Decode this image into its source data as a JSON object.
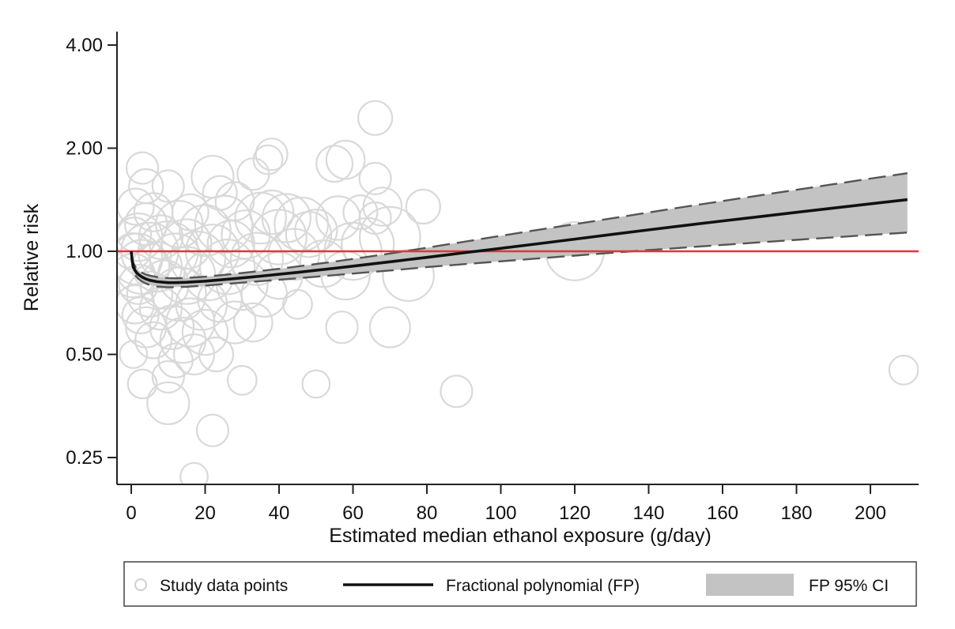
{
  "chart_data": {
    "type": "scatter",
    "title": "",
    "xlabel": "Estimated median ethanol exposure (g/day)",
    "ylabel": "Relative risk",
    "y_scale": "log",
    "xlim": [
      -4,
      214
    ],
    "ylim": [
      0.21,
      4.4
    ],
    "x_ticks": [
      0,
      20,
      40,
      60,
      80,
      100,
      120,
      140,
      160,
      180,
      200
    ],
    "x_tick_labels": [
      "0",
      "20",
      "40",
      "60",
      "80",
      "100",
      "120",
      "140",
      "160",
      "180",
      "200"
    ],
    "y_ticks": [
      0.25,
      0.5,
      1.0,
      2.0,
      4.0
    ],
    "y_tick_labels": [
      "0.25",
      "0.50",
      "1.00",
      "2.00",
      "4.00"
    ],
    "grid": false,
    "reference_line": {
      "y": 1.0,
      "color": "#e8323c"
    },
    "colors": {
      "points": "#d9d9d9",
      "fit": "#111111",
      "ci_fill": "#c3c3c3",
      "ci_line": "#555555"
    },
    "legend": {
      "placement": "bottom",
      "entries": [
        "Study data points",
        "Fractional polynomial (FP)",
        "FP 95% CI"
      ]
    },
    "series": [
      {
        "name": "Study data points",
        "kind": "bubble",
        "points": [
          {
            "x": 0.3,
            "y": 1.0,
            "w": 12
          },
          {
            "x": 0.5,
            "y": 0.85,
            "w": 20
          },
          {
            "x": 0.6,
            "y": 0.5,
            "w": 5
          },
          {
            "x": 0.8,
            "y": 1.12,
            "w": 10
          },
          {
            "x": 1.0,
            "y": 0.7,
            "w": 14
          },
          {
            "x": 1.2,
            "y": 1.35,
            "w": 12
          },
          {
            "x": 1.5,
            "y": 0.95,
            "w": 30
          },
          {
            "x": 2.0,
            "y": 0.8,
            "w": 15
          },
          {
            "x": 2.0,
            "y": 1.1,
            "w": 25
          },
          {
            "x": 2.5,
            "y": 0.65,
            "w": 12
          },
          {
            "x": 3.0,
            "y": 1.75,
            "w": 8
          },
          {
            "x": 3.0,
            "y": 0.41,
            "w": 6
          },
          {
            "x": 3.0,
            "y": 0.9,
            "w": 35
          },
          {
            "x": 4.0,
            "y": 1.55,
            "w": 10
          },
          {
            "x": 4.0,
            "y": 1.2,
            "w": 18
          },
          {
            "x": 4.0,
            "y": 0.6,
            "w": 16
          },
          {
            "x": 5.0,
            "y": 1.0,
            "w": 40
          },
          {
            "x": 5.0,
            "y": 0.75,
            "w": 22
          },
          {
            "x": 6.0,
            "y": 1.3,
            "w": 14
          },
          {
            "x": 6.0,
            "y": 0.55,
            "w": 12
          },
          {
            "x": 7.0,
            "y": 0.9,
            "w": 28
          },
          {
            "x": 8.0,
            "y": 1.1,
            "w": 20
          },
          {
            "x": 8.0,
            "y": 0.68,
            "w": 18
          },
          {
            "x": 9.0,
            "y": 0.8,
            "w": 26
          },
          {
            "x": 10.0,
            "y": 1.55,
            "w": 8
          },
          {
            "x": 10.0,
            "y": 0.43,
            "w": 8
          },
          {
            "x": 10.0,
            "y": 0.36,
            "w": 18
          },
          {
            "x": 10.0,
            "y": 1.0,
            "w": 45
          },
          {
            "x": 11.0,
            "y": 0.6,
            "w": 20
          },
          {
            "x": 12.0,
            "y": 0.95,
            "w": 30
          },
          {
            "x": 12.0,
            "y": 0.48,
            "w": 10
          },
          {
            "x": 13.0,
            "y": 1.2,
            "w": 24
          },
          {
            "x": 13.0,
            "y": 0.75,
            "w": 34
          },
          {
            "x": 14.0,
            "y": 0.55,
            "w": 22
          },
          {
            "x": 15.0,
            "y": 1.05,
            "w": 28
          },
          {
            "x": 15.0,
            "y": 0.85,
            "w": 40
          },
          {
            "x": 16.0,
            "y": 0.62,
            "w": 26
          },
          {
            "x": 16.0,
            "y": 1.3,
            "w": 12
          },
          {
            "x": 17.0,
            "y": 0.22,
            "w": 5
          },
          {
            "x": 17.0,
            "y": 0.5,
            "w": 16
          },
          {
            "x": 18.0,
            "y": 0.95,
            "w": 36
          },
          {
            "x": 19.0,
            "y": 0.7,
            "w": 30
          },
          {
            "x": 20.0,
            "y": 1.15,
            "w": 30
          },
          {
            "x": 20.0,
            "y": 0.58,
            "w": 22
          },
          {
            "x": 21.0,
            "y": 0.85,
            "w": 28
          },
          {
            "x": 22.0,
            "y": 1.65,
            "w": 18
          },
          {
            "x": 22.0,
            "y": 0.3,
            "w": 8
          },
          {
            "x": 22.0,
            "y": 1.0,
            "w": 34
          },
          {
            "x": 23.0,
            "y": 0.5,
            "w": 10
          },
          {
            "x": 24.0,
            "y": 1.48,
            "w": 10
          },
          {
            "x": 24.0,
            "y": 0.72,
            "w": 20
          },
          {
            "x": 25.0,
            "y": 1.2,
            "w": 40
          },
          {
            "x": 26.0,
            "y": 0.9,
            "w": 36
          },
          {
            "x": 27.0,
            "y": 1.05,
            "w": 24
          },
          {
            "x": 28.0,
            "y": 0.62,
            "w": 18
          },
          {
            "x": 28.0,
            "y": 1.4,
            "w": 14
          },
          {
            "x": 30.0,
            "y": 0.42,
            "w": 6
          },
          {
            "x": 30.0,
            "y": 0.8,
            "w": 30
          },
          {
            "x": 31.0,
            "y": 1.12,
            "w": 26
          },
          {
            "x": 33.0,
            "y": 1.68,
            "w": 8
          },
          {
            "x": 33.0,
            "y": 0.62,
            "w": 14
          },
          {
            "x": 34.0,
            "y": 0.95,
            "w": 32
          },
          {
            "x": 35.0,
            "y": 1.25,
            "w": 30
          },
          {
            "x": 36.0,
            "y": 0.75,
            "w": 22
          },
          {
            "x": 37.0,
            "y": 1.85,
            "w": 6
          },
          {
            "x": 38.0,
            "y": 1.92,
            "w": 8
          },
          {
            "x": 38.0,
            "y": 1.3,
            "w": 20
          },
          {
            "x": 40.0,
            "y": 1.1,
            "w": 36
          },
          {
            "x": 40.0,
            "y": 0.85,
            "w": 24
          },
          {
            "x": 42.0,
            "y": 1.25,
            "w": 26
          },
          {
            "x": 44.0,
            "y": 0.98,
            "w": 30
          },
          {
            "x": 45.0,
            "y": 0.7,
            "w": 6
          },
          {
            "x": 46.0,
            "y": 1.2,
            "w": 34
          },
          {
            "x": 48.0,
            "y": 1.12,
            "w": 22
          },
          {
            "x": 50.0,
            "y": 0.41,
            "w": 5
          },
          {
            "x": 50.0,
            "y": 1.15,
            "w": 18
          },
          {
            "x": 52.0,
            "y": 0.92,
            "w": 24
          },
          {
            "x": 55.0,
            "y": 1.8,
            "w": 12
          },
          {
            "x": 56.0,
            "y": 1.25,
            "w": 20
          },
          {
            "x": 57.0,
            "y": 0.6,
            "w": 8
          },
          {
            "x": 58.0,
            "y": 1.85,
            "w": 14
          },
          {
            "x": 58.0,
            "y": 0.85,
            "w": 26
          },
          {
            "x": 60.0,
            "y": 1.0,
            "w": 40
          },
          {
            "x": 62.0,
            "y": 1.3,
            "w": 10
          },
          {
            "x": 64.0,
            "y": 1.05,
            "w": 32
          },
          {
            "x": 66.0,
            "y": 2.45,
            "w": 10
          },
          {
            "x": 66.0,
            "y": 1.25,
            "w": 8
          },
          {
            "x": 66.0,
            "y": 1.63,
            "w": 8
          },
          {
            "x": 68.0,
            "y": 1.35,
            "w": 14
          },
          {
            "x": 70.0,
            "y": 0.6,
            "w": 16
          },
          {
            "x": 70.0,
            "y": 1.1,
            "w": 46
          },
          {
            "x": 75.0,
            "y": 0.85,
            "w": 30
          },
          {
            "x": 79.0,
            "y": 1.35,
            "w": 10
          },
          {
            "x": 88.0,
            "y": 0.39,
            "w": 8
          },
          {
            "x": 120.0,
            "y": 1.0,
            "w": 42
          },
          {
            "x": 209.0,
            "y": 0.45,
            "w": 6
          }
        ]
      },
      {
        "name": "Fractional polynomial (FP)",
        "kind": "line",
        "x": [
          0,
          0.3,
          0.6,
          1,
          1.5,
          2,
          3,
          4,
          5,
          7,
          10,
          12,
          15,
          20,
          25,
          30,
          35,
          40,
          45,
          50,
          55,
          60,
          65,
          70,
          75,
          80,
          85,
          90,
          100,
          110,
          120,
          130,
          140,
          150,
          160,
          170,
          180,
          190,
          200,
          210
        ],
        "y": [
          1.0,
          0.93,
          0.9,
          0.88,
          0.865,
          0.855,
          0.84,
          0.83,
          0.823,
          0.815,
          0.81,
          0.81,
          0.812,
          0.818,
          0.827,
          0.836,
          0.846,
          0.857,
          0.868,
          0.88,
          0.892,
          0.905,
          0.918,
          0.932,
          0.946,
          0.96,
          0.975,
          0.99,
          1.02,
          1.052,
          1.085,
          1.12,
          1.155,
          1.19,
          1.226,
          1.262,
          1.299,
          1.337,
          1.376,
          1.415
        ]
      },
      {
        "name": "FP 95% CI",
        "kind": "band",
        "x": [
          0,
          0.3,
          0.6,
          1,
          1.5,
          2,
          3,
          4,
          5,
          7,
          10,
          12,
          15,
          20,
          25,
          30,
          35,
          40,
          45,
          50,
          55,
          60,
          65,
          70,
          75,
          80,
          85,
          90,
          100,
          110,
          120,
          130,
          140,
          150,
          160,
          170,
          180,
          190,
          200,
          210
        ],
        "lower": [
          1.0,
          0.91,
          0.875,
          0.855,
          0.84,
          0.83,
          0.815,
          0.805,
          0.797,
          0.789,
          0.785,
          0.786,
          0.788,
          0.794,
          0.802,
          0.81,
          0.818,
          0.826,
          0.834,
          0.843,
          0.852,
          0.861,
          0.87,
          0.879,
          0.889,
          0.899,
          0.908,
          0.917,
          0.935,
          0.953,
          0.971,
          0.99,
          1.008,
          1.026,
          1.044,
          1.062,
          1.08,
          1.098,
          1.116,
          1.134
        ],
        "upper": [
          1.0,
          0.95,
          0.925,
          0.905,
          0.89,
          0.88,
          0.865,
          0.855,
          0.849,
          0.841,
          0.835,
          0.834,
          0.836,
          0.843,
          0.853,
          0.864,
          0.876,
          0.889,
          0.903,
          0.918,
          0.933,
          0.95,
          0.967,
          0.985,
          1.004,
          1.024,
          1.045,
          1.066,
          1.11,
          1.155,
          1.2,
          1.248,
          1.298,
          1.35,
          1.402,
          1.456,
          1.512,
          1.57,
          1.63,
          1.69
        ]
      }
    ]
  }
}
